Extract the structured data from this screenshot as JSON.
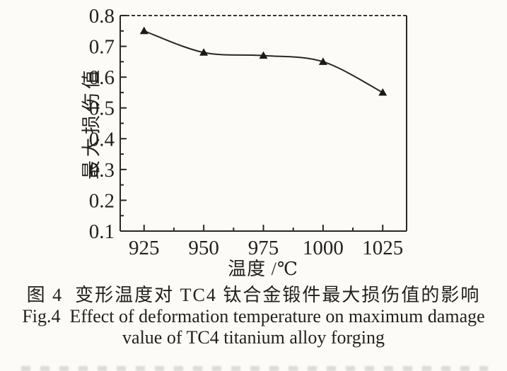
{
  "chart_data": {
    "type": "line",
    "x": [
      925,
      950,
      975,
      1000,
      1025
    ],
    "values": [
      0.75,
      0.68,
      0.67,
      0.65,
      0.55
    ],
    "series_name": "maximum damage value",
    "xlabel": "温度 /℃",
    "ylabel": "最大损伤值",
    "xlim": [
      915,
      1035
    ],
    "ylim": [
      0.1,
      0.8
    ],
    "x_ticks": [
      925,
      950,
      975,
      1000,
      1025
    ],
    "y_ticks": [
      0.1,
      0.2,
      0.3,
      0.4,
      0.5,
      0.6,
      0.7,
      0.8
    ],
    "grid": false,
    "legend": null,
    "marker": "triangle-up",
    "line_color": "#2b2822",
    "marker_color": "#1d1a15",
    "frame_color": "#2b2822",
    "top_border_style": "dashed",
    "tick_direction": "in"
  },
  "caption": {
    "zh": "图 4  变形温度对 TC4 钛合金锻件最大损伤值的影响",
    "en_line1": "Fig.4  Effect of deformation temperature on maximum damage",
    "en_line2": "value of TC4 titanium alloy forging"
  }
}
